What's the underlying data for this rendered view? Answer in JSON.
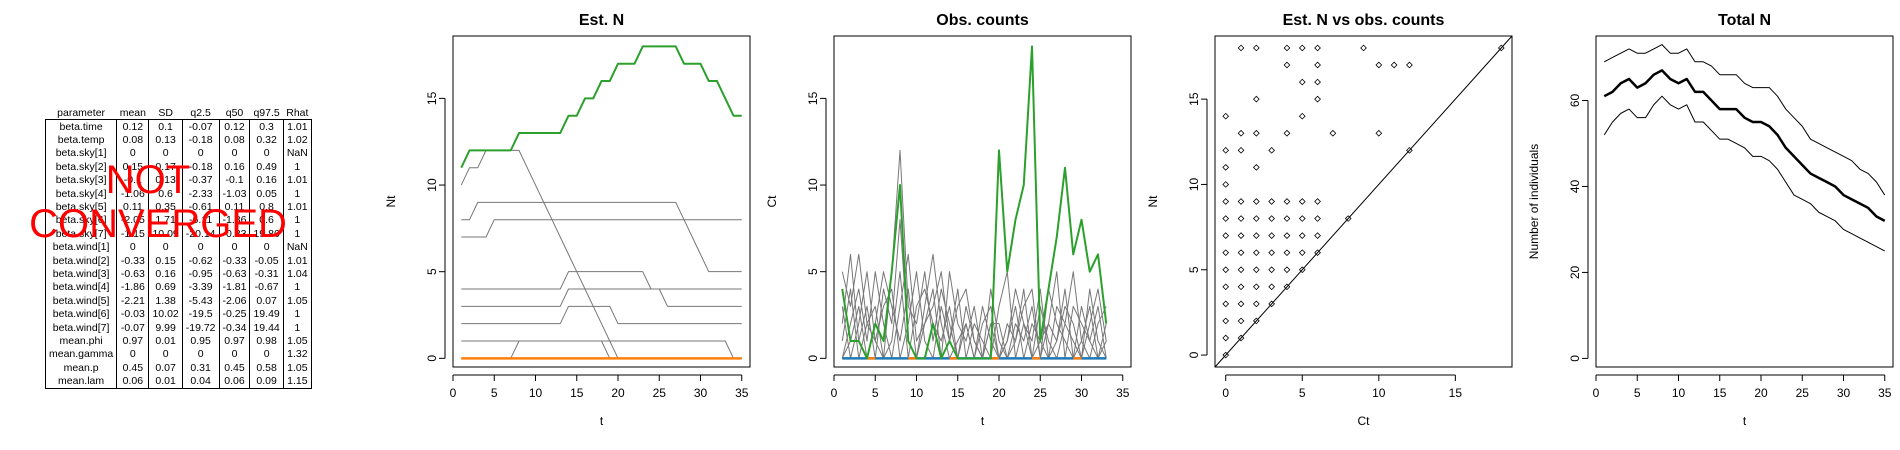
{
  "table": {
    "columns": [
      "parameter",
      "mean",
      "SD",
      "q2.5",
      "q50",
      "q97.5",
      "Rhat"
    ],
    "rows": [
      [
        "beta.time",
        "0.12",
        "0.1",
        "-0.07",
        "0.12",
        "0.3",
        "1.01"
      ],
      [
        "beta.temp",
        "0.08",
        "0.13",
        "-0.18",
        "0.08",
        "0.32",
        "1.02"
      ],
      [
        "beta.sky[1]",
        "0",
        "0",
        "0",
        "0",
        "0",
        "NaN"
      ],
      [
        "beta.sky[2]",
        "0.15",
        "0.17",
        "-0.18",
        "0.16",
        "0.49",
        "1"
      ],
      [
        "beta.sky[3]",
        "-0.1",
        "0.13",
        "-0.37",
        "-0.1",
        "0.16",
        "1.01"
      ],
      [
        "beta.sky[4]",
        "-1.06",
        "0.6",
        "-2.33",
        "-1.03",
        "0.05",
        "1"
      ],
      [
        "beta.sky[5]",
        "0.11",
        "0.35",
        "-0.61",
        "0.11",
        "0.8",
        "1.01"
      ],
      [
        "beta.sky[6]",
        "-2.05",
        "1.71",
        "-6.11",
        "-1.86",
        "0.6",
        "1"
      ],
      [
        "beta.sky[7]",
        "-1.15",
        "10.09",
        "-20.14",
        "-0.33",
        "19.86",
        "1"
      ],
      [
        "beta.wind[1]",
        "0",
        "0",
        "0",
        "0",
        "0",
        "NaN"
      ],
      [
        "beta.wind[2]",
        "-0.33",
        "0.15",
        "-0.62",
        "-0.33",
        "-0.05",
        "1.01"
      ],
      [
        "beta.wind[3]",
        "-0.63",
        "0.16",
        "-0.95",
        "-0.63",
        "-0.31",
        "1.04"
      ],
      [
        "beta.wind[4]",
        "-1.86",
        "0.69",
        "-3.39",
        "-1.81",
        "-0.67",
        "1"
      ],
      [
        "beta.wind[5]",
        "-2.21",
        "1.38",
        "-5.43",
        "-2.06",
        "0.07",
        "1.05"
      ],
      [
        "beta.wind[6]",
        "-0.03",
        "10.02",
        "-19.5",
        "-0.25",
        "19.49",
        "1"
      ],
      [
        "beta.wind[7]",
        "-0.07",
        "9.99",
        "-19.72",
        "-0.34",
        "19.44",
        "1"
      ],
      [
        "mean.phi",
        "0.97",
        "0.01",
        "0.95",
        "0.97",
        "0.98",
        "1.05"
      ],
      [
        "mean.gamma",
        "0",
        "0",
        "0",
        "0",
        "0",
        "1.32"
      ],
      [
        "mean.p",
        "0.45",
        "0.07",
        "0.31",
        "0.45",
        "0.58",
        "1.05"
      ],
      [
        "mean.lam",
        "0.06",
        "0.01",
        "0.04",
        "0.06",
        "0.09",
        "1.15"
      ]
    ]
  },
  "stamp": {
    "line1": "NOT",
    "line2": "CONVERGED",
    "color": "#ff0000"
  },
  "chart_data": [
    {
      "type": "line",
      "title": "Est. N",
      "xlabel": "t",
      "ylabel": "Nt",
      "xlim": [
        0,
        36
      ],
      "ylim": [
        -0.5,
        18.6
      ],
      "xticks": [
        0,
        5,
        10,
        15,
        20,
        25,
        30,
        35
      ],
      "yticks": [
        0,
        5,
        10,
        15
      ],
      "grey_color": "#777777",
      "highlight_color": "#2ca02c",
      "baseline_color": "#ff7f0e",
      "baseline_value": 0,
      "highlight": [
        11,
        12,
        12,
        12,
        12,
        12,
        12,
        13,
        13,
        13,
        13,
        13,
        13,
        14,
        14,
        15,
        15,
        16,
        16,
        17,
        17,
        17,
        18,
        18,
        18,
        18,
        18,
        17,
        17,
        17,
        16,
        16,
        15,
        14,
        14
      ],
      "grey_series": [
        [
          10,
          11,
          11,
          12,
          12,
          12,
          12,
          12,
          11,
          10,
          9,
          8,
          7,
          6,
          5,
          4,
          3,
          2,
          1,
          0,
          0,
          0,
          0,
          0,
          0,
          0,
          0,
          0,
          0,
          0,
          0,
          0,
          0,
          0,
          0
        ],
        [
          8,
          8,
          9,
          9,
          9,
          9,
          9,
          9,
          9,
          9,
          9,
          9,
          9,
          9,
          9,
          9,
          9,
          9,
          9,
          9,
          9,
          9,
          9,
          9,
          9,
          9,
          9,
          8,
          7,
          6,
          5,
          5,
          5,
          5,
          5
        ],
        [
          7,
          7,
          7,
          7,
          8,
          8,
          8,
          8,
          8,
          8,
          8,
          8,
          8,
          8,
          8,
          8,
          8,
          8,
          8,
          8,
          8,
          8,
          8,
          8,
          8,
          8,
          8,
          8,
          8,
          8,
          8,
          8,
          8,
          8,
          8
        ],
        [
          4,
          4,
          4,
          4,
          4,
          4,
          4,
          4,
          4,
          4,
          4,
          4,
          4,
          5,
          5,
          5,
          5,
          5,
          5,
          5,
          5,
          5,
          5,
          4,
          4,
          4,
          4,
          4,
          4,
          4,
          4,
          4,
          4,
          4,
          4
        ],
        [
          3,
          3,
          3,
          3,
          3,
          3,
          3,
          3,
          3,
          3,
          3,
          3,
          3,
          4,
          4,
          4,
          4,
          4,
          4,
          4,
          4,
          4,
          4,
          4,
          4,
          3,
          3,
          3,
          3,
          3,
          3,
          3,
          3,
          3,
          3
        ],
        [
          2,
          2,
          2,
          2,
          2,
          2,
          2,
          2,
          2,
          2,
          2,
          2,
          2,
          3,
          3,
          3,
          3,
          3,
          3,
          2,
          2,
          2,
          2,
          2,
          2,
          2,
          2,
          2,
          2,
          2,
          2,
          2,
          2,
          2,
          2
        ],
        [
          1,
          1,
          1,
          1,
          1,
          1,
          1,
          1,
          1,
          1,
          1,
          1,
          1,
          1,
          1,
          1,
          1,
          1,
          1,
          1,
          1,
          1,
          1,
          1,
          1,
          1,
          1,
          1,
          1,
          1,
          1,
          1,
          1,
          0,
          0
        ],
        [
          0,
          0,
          0,
          0,
          0,
          0,
          0,
          1,
          1,
          1,
          1,
          1,
          1,
          1,
          1,
          1,
          1,
          1,
          0,
          0,
          0,
          0,
          0,
          0,
          0,
          0,
          0,
          0,
          0,
          0,
          0,
          0,
          0,
          0,
          0
        ]
      ]
    },
    {
      "type": "line",
      "title": "Obs. counts",
      "xlabel": "t",
      "ylabel": "Ct",
      "xlim": [
        0,
        36
      ],
      "ylim": [
        -0.5,
        18.6
      ],
      "xticks": [
        0,
        5,
        10,
        15,
        20,
        25,
        30,
        35
      ],
      "yticks": [
        0,
        5,
        10,
        15
      ],
      "grey_color": "#777777",
      "highlight_color": "#2ca02c",
      "baseline_color": "#1f77b4",
      "baseline2_color": "#ff7f0e",
      "baseline_value": 0,
      "highlight": [
        4,
        1,
        1,
        0,
        2,
        1,
        5,
        10,
        1,
        0,
        0,
        2,
        0,
        1,
        0,
        0,
        0,
        0,
        0,
        12,
        5,
        8,
        10,
        18,
        1,
        4,
        7,
        11,
        6,
        8,
        5,
        6,
        2
      ],
      "grey_series": [
        [
          5,
          3,
          6,
          2,
          1,
          0,
          5,
          12,
          3,
          2,
          5,
          1,
          4,
          2,
          0,
          3,
          1,
          0,
          2,
          0,
          1,
          3,
          0,
          2,
          1,
          0,
          3,
          2,
          1,
          0,
          2,
          4,
          1
        ],
        [
          2,
          6,
          1,
          3,
          0,
          4,
          2,
          8,
          1,
          0,
          3,
          6,
          2,
          0,
          1,
          2,
          0,
          3,
          1,
          0,
          2,
          1,
          4,
          0,
          3,
          1,
          0,
          2,
          5,
          1,
          0,
          2,
          3
        ],
        [
          0,
          2,
          4,
          1,
          5,
          2,
          0,
          3,
          6,
          1,
          2,
          4,
          0,
          5,
          2,
          1,
          3,
          0,
          4,
          1,
          0,
          2,
          1,
          3,
          0,
          4,
          2,
          1,
          0,
          3,
          1,
          0,
          2
        ],
        [
          3,
          0,
          2,
          5,
          1,
          3,
          4,
          0,
          2,
          5,
          1,
          0,
          3,
          1,
          4,
          0,
          2,
          1,
          0,
          3,
          5,
          0,
          2,
          1,
          4,
          0,
          1,
          3,
          2,
          0,
          4,
          1,
          0
        ],
        [
          1,
          4,
          0,
          2,
          3,
          0,
          1,
          5,
          0,
          3,
          4,
          2,
          1,
          3,
          0,
          2,
          0,
          2,
          3,
          0,
          1,
          4,
          2,
          0,
          1,
          2,
          5,
          0,
          3,
          2,
          1,
          3,
          0
        ],
        [
          0,
          1,
          3,
          0,
          2,
          5,
          3,
          1,
          4,
          0,
          2,
          3,
          5,
          1,
          3,
          4,
          1,
          0,
          2,
          2,
          0,
          1,
          3,
          4,
          0,
          2,
          1,
          4,
          0,
          1,
          3,
          0,
          1
        ]
      ]
    },
    {
      "type": "scatter",
      "title": "Est. N vs obs. counts",
      "xlabel": "Ct",
      "ylabel": "Nt",
      "xlim": [
        -0.7,
        18.7
      ],
      "ylim": [
        -0.7,
        18.7
      ],
      "xticks": [
        0,
        5,
        10,
        15
      ],
      "yticks": [
        0,
        5,
        10,
        15
      ],
      "identity_line": true,
      "points": [
        [
          0,
          14
        ],
        [
          0,
          12
        ],
        [
          0,
          11
        ],
        [
          0,
          10
        ],
        [
          0,
          9
        ],
        [
          0,
          8
        ],
        [
          0,
          7
        ],
        [
          0,
          6
        ],
        [
          0,
          5
        ],
        [
          0,
          4
        ],
        [
          0,
          3
        ],
        [
          0,
          2
        ],
        [
          0,
          1
        ],
        [
          0,
          0
        ],
        [
          1,
          18
        ],
        [
          1,
          13
        ],
        [
          1,
          12
        ],
        [
          1,
          9
        ],
        [
          1,
          8
        ],
        [
          1,
          7
        ],
        [
          1,
          6
        ],
        [
          1,
          5
        ],
        [
          1,
          4
        ],
        [
          1,
          3
        ],
        [
          1,
          2
        ],
        [
          1,
          1
        ],
        [
          2,
          18
        ],
        [
          2,
          15
        ],
        [
          2,
          13
        ],
        [
          2,
          11
        ],
        [
          2,
          9
        ],
        [
          2,
          8
        ],
        [
          2,
          7
        ],
        [
          2,
          6
        ],
        [
          2,
          5
        ],
        [
          2,
          4
        ],
        [
          2,
          3
        ],
        [
          2,
          2
        ],
        [
          3,
          12
        ],
        [
          3,
          9
        ],
        [
          3,
          8
        ],
        [
          3,
          7
        ],
        [
          3,
          6
        ],
        [
          3,
          5
        ],
        [
          3,
          4
        ],
        [
          3,
          3
        ],
        [
          4,
          18
        ],
        [
          4,
          17
        ],
        [
          4,
          13
        ],
        [
          4,
          9
        ],
        [
          4,
          8
        ],
        [
          4,
          7
        ],
        [
          4,
          6
        ],
        [
          4,
          5
        ],
        [
          4,
          4
        ],
        [
          5,
          18
        ],
        [
          5,
          16
        ],
        [
          5,
          14
        ],
        [
          5,
          9
        ],
        [
          5,
          8
        ],
        [
          5,
          7
        ],
        [
          5,
          6
        ],
        [
          5,
          5
        ],
        [
          6,
          18
        ],
        [
          6,
          17
        ],
        [
          6,
          16
        ],
        [
          6,
          15
        ],
        [
          6,
          9
        ],
        [
          6,
          8
        ],
        [
          6,
          7
        ],
        [
          6,
          6
        ],
        [
          7,
          13
        ],
        [
          8,
          8
        ],
        [
          9,
          18
        ],
        [
          10,
          17
        ],
        [
          10,
          13
        ],
        [
          11,
          17
        ],
        [
          12,
          17
        ],
        [
          12,
          12
        ],
        [
          18,
          18
        ]
      ]
    },
    {
      "type": "line",
      "title": "Total N",
      "xlabel": "t",
      "ylabel": "Number of individuals",
      "xlim": [
        0,
        36
      ],
      "ylim": [
        -2,
        75
      ],
      "xticks": [
        0,
        5,
        10,
        15,
        20,
        25,
        30,
        35
      ],
      "yticks": [
        0,
        20,
        40,
        60
      ],
      "series": [
        {
          "values": [
            61,
            62,
            64,
            65,
            63,
            64,
            66,
            67,
            65,
            64,
            65,
            62,
            62,
            60,
            58,
            58,
            58,
            56,
            55,
            55,
            54,
            52,
            49,
            47,
            45,
            43,
            42,
            41,
            40,
            38,
            37,
            36,
            35,
            33,
            32
          ]
        },
        {
          "values": [
            69,
            70,
            71,
            72,
            71,
            71,
            72,
            73,
            71,
            71,
            72,
            69,
            69,
            68,
            66,
            66,
            66,
            64,
            63,
            63,
            63,
            61,
            58,
            56,
            54,
            51,
            50,
            49,
            48,
            47,
            46,
            44,
            43,
            41,
            38
          ]
        },
        {
          "values": [
            52,
            55,
            57,
            58,
            56,
            56,
            59,
            61,
            59,
            58,
            59,
            55,
            55,
            53,
            51,
            51,
            50,
            49,
            47,
            47,
            46,
            44,
            41,
            38,
            37,
            36,
            34,
            33,
            32,
            30,
            29,
            28,
            27,
            26,
            25
          ]
        }
      ]
    }
  ]
}
